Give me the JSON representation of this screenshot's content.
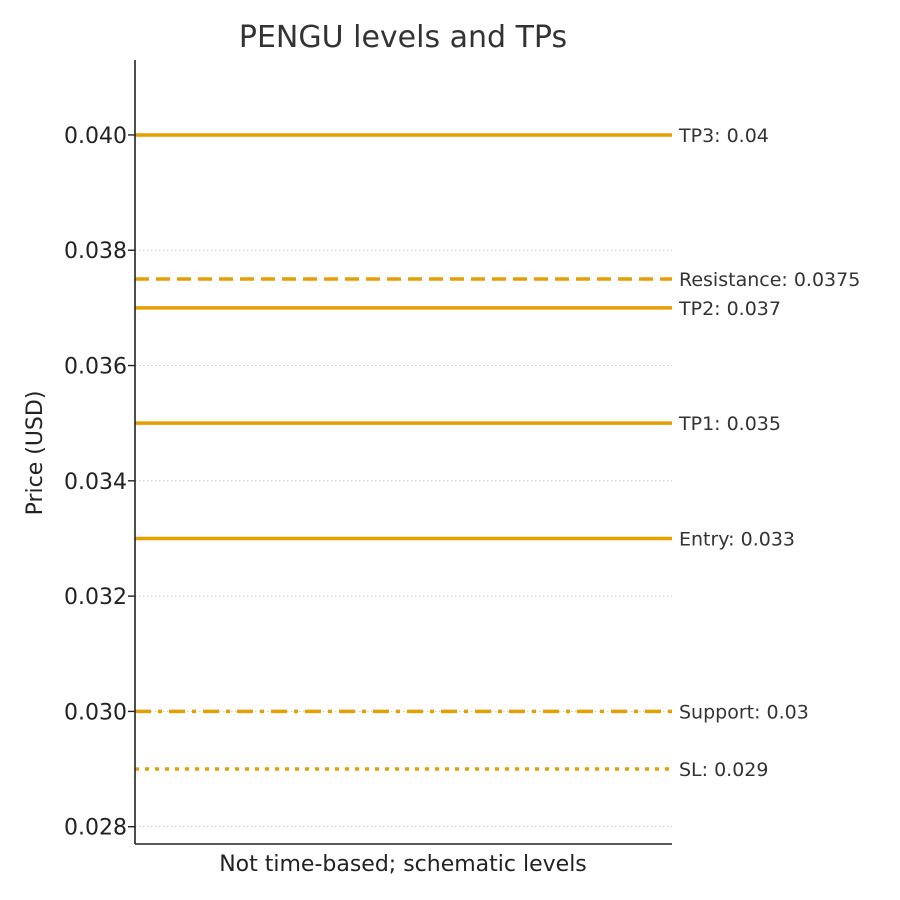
{
  "chart_data": {
    "type": "line",
    "title": "PENGU levels and TPs",
    "xlabel": "Not time-based; schematic levels",
    "ylabel": "Price (USD)",
    "ylim": [
      0.0277,
      0.0413
    ],
    "y_ticks": [
      0.028,
      0.03,
      0.032,
      0.034,
      0.036,
      0.038,
      0.04
    ],
    "y_tick_labels": [
      "0.028",
      "0.030",
      "0.032",
      "0.034",
      "0.036",
      "0.038",
      "0.040"
    ],
    "grid": "horizontal dotted",
    "line_color": "#E69F00",
    "series": [
      {
        "name": "TP3",
        "label": "TP3: 0.04",
        "value": 0.04,
        "style": "solid"
      },
      {
        "name": "Resistance",
        "label": "Resistance: 0.0375",
        "value": 0.0375,
        "style": "dashed"
      },
      {
        "name": "TP2",
        "label": "TP2: 0.037",
        "value": 0.037,
        "style": "solid"
      },
      {
        "name": "TP1",
        "label": "TP1: 0.035",
        "value": 0.035,
        "style": "solid"
      },
      {
        "name": "Entry",
        "label": "Entry: 0.033",
        "value": 0.033,
        "style": "solid"
      },
      {
        "name": "Support",
        "label": "Support: 0.03",
        "value": 0.03,
        "style": "dashdot"
      },
      {
        "name": "SL",
        "label": "SL: 0.029",
        "value": 0.029,
        "style": "dotted"
      }
    ]
  }
}
